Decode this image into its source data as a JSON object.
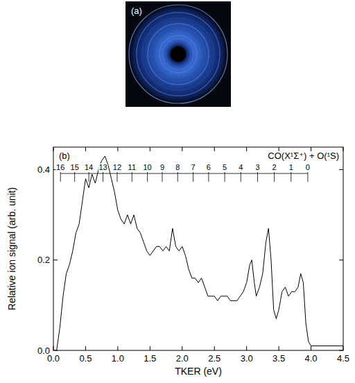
{
  "panel_a": {
    "label": "(a)"
  },
  "chart_data": {
    "type": "line",
    "panel_label": "(b)",
    "annotation": "CO(X¹Σ⁺) + O(¹S)",
    "x_label": "TKER (eV)",
    "y_label": "Relative ion signal (arb. unit)",
    "color": "#000000",
    "x": [
      0.05,
      0.1,
      0.15,
      0.2,
      0.25,
      0.3,
      0.35,
      0.4,
      0.45,
      0.5,
      0.55,
      0.6,
      0.65,
      0.7,
      0.75,
      0.8,
      0.85,
      0.9,
      0.95,
      1.0,
      1.05,
      1.1,
      1.15,
      1.2,
      1.25,
      1.3,
      1.35,
      1.4,
      1.45,
      1.5,
      1.55,
      1.6,
      1.65,
      1.7,
      1.75,
      1.8,
      1.85,
      1.9,
      1.95,
      2.0,
      2.05,
      2.1,
      2.15,
      2.2,
      2.25,
      2.3,
      2.35,
      2.4,
      2.45,
      2.5,
      2.55,
      2.6,
      2.65,
      2.7,
      2.75,
      2.8,
      2.85,
      2.9,
      2.95,
      3.0,
      3.05,
      3.08,
      3.12,
      3.15,
      3.2,
      3.25,
      3.3,
      3.34,
      3.38,
      3.42,
      3.46,
      3.5,
      3.55,
      3.6,
      3.65,
      3.7,
      3.75,
      3.8,
      3.84,
      3.88,
      3.92,
      3.96,
      4.0,
      4.2,
      4.5
    ],
    "values": [
      0.0,
      0.05,
      0.12,
      0.17,
      0.19,
      0.22,
      0.26,
      0.28,
      0.33,
      0.38,
      0.36,
      0.39,
      0.37,
      0.4,
      0.42,
      0.43,
      0.41,
      0.38,
      0.35,
      0.31,
      0.29,
      0.28,
      0.3,
      0.28,
      0.3,
      0.27,
      0.26,
      0.24,
      0.22,
      0.21,
      0.22,
      0.23,
      0.23,
      0.22,
      0.23,
      0.22,
      0.27,
      0.23,
      0.22,
      0.23,
      0.21,
      0.18,
      0.16,
      0.16,
      0.15,
      0.16,
      0.14,
      0.12,
      0.12,
      0.12,
      0.11,
      0.12,
      0.12,
      0.12,
      0.11,
      0.11,
      0.11,
      0.12,
      0.13,
      0.15,
      0.19,
      0.2,
      0.15,
      0.12,
      0.14,
      0.17,
      0.24,
      0.27,
      0.2,
      0.09,
      0.07,
      0.09,
      0.13,
      0.14,
      0.12,
      0.13,
      0.13,
      0.14,
      0.17,
      0.15,
      0.06,
      0.02,
      0.01,
      0.01,
      0.01
    ],
    "xlim": [
      0,
      4.5
    ],
    "ylim": [
      0,
      0.45
    ],
    "xticks": [
      {
        "value": 0,
        "label": "0.0"
      },
      0.5,
      {
        "value": 1,
        "label": "1.0"
      },
      1.5,
      {
        "value": 2,
        "label": "2.0"
      },
      2.5,
      {
        "value": 3,
        "label": "3.0"
      },
      3.5,
      {
        "value": 4,
        "label": "4.0"
      },
      4.5
    ],
    "yticks": [
      {
        "value": 0,
        "label": "0.0"
      },
      0.2,
      0.4
    ],
    "vib_levels": {
      "v": [
        16,
        15,
        14,
        13,
        12,
        11,
        10,
        9,
        8,
        7,
        6,
        5,
        4,
        3,
        2,
        1,
        0
      ],
      "tker": [
        0.11,
        0.33,
        0.55,
        0.77,
        0.99,
        1.22,
        1.46,
        1.69,
        1.93,
        2.17,
        2.41,
        2.66,
        2.91,
        3.17,
        3.43,
        3.69,
        3.95
      ]
    }
  }
}
